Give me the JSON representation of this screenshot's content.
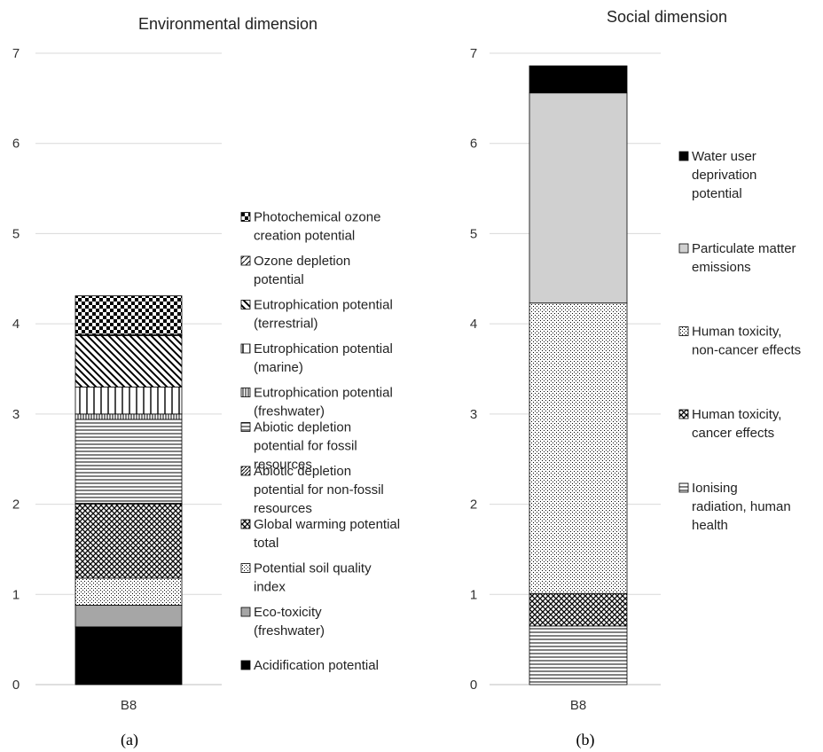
{
  "panel_labels": [
    "(a)",
    "(b)"
  ],
  "chart_data": [
    {
      "type": "bar",
      "stacked": true,
      "title": "Environmental dimension",
      "categories": [
        "B8"
      ],
      "ylim": [
        0,
        7
      ],
      "yticks": [
        0,
        1,
        2,
        3,
        4,
        5,
        6,
        7
      ],
      "grid": true,
      "legend_position": "right",
      "series": [
        {
          "name": "Acidification potential",
          "values": [
            0.64
          ],
          "color": "#000000",
          "pattern": "solid-black"
        },
        {
          "name": "Eco-toxicity (freshwater)",
          "values": [
            0.24
          ],
          "color": "#a6a6a6",
          "pattern": "solid-gray"
        },
        {
          "name": "Potential soil quality index",
          "values": [
            0.3
          ],
          "color": "#ffffff",
          "pattern": "dots"
        },
        {
          "name": "Global warming potential total",
          "values": [
            0.82
          ],
          "color": "#ffffff",
          "pattern": "crosshatch-dense"
        },
        {
          "name": "Abiotic depletion potential for non-fossil resources",
          "values": [
            0.01
          ],
          "color": "#ffffff",
          "pattern": "diag-fine"
        },
        {
          "name": "Abiotic depletion potential for fossil resources",
          "values": [
            0.93
          ],
          "color": "#ffffff",
          "pattern": "hlines"
        },
        {
          "name": "Eutrophication potential (freshwater)",
          "values": [
            0.06
          ],
          "color": "#ffffff",
          "pattern": "vlines-fine"
        },
        {
          "name": "Eutrophication potential (marine)",
          "values": [
            0.3
          ],
          "color": "#ffffff",
          "pattern": "vlines-wide"
        },
        {
          "name": "Eutrophication potential (terrestrial)",
          "values": [
            0.57
          ],
          "color": "#ffffff",
          "pattern": "diag-down"
        },
        {
          "name": "Ozone depletion potential",
          "values": [
            0.01
          ],
          "color": "#ffffff",
          "pattern": "diag-up"
        },
        {
          "name": "Photochemical ozone creation potential",
          "values": [
            0.43
          ],
          "color": "#ffffff",
          "pattern": "checker"
        }
      ]
    },
    {
      "type": "bar",
      "stacked": true,
      "title": "Social dimension",
      "categories": [
        "B8"
      ],
      "ylim": [
        0,
        7
      ],
      "yticks": [
        0,
        1,
        2,
        3,
        4,
        5,
        6,
        7
      ],
      "grid": true,
      "legend_position": "right",
      "series": [
        {
          "name": "Ionising radiation, human health",
          "values": [
            0.65
          ],
          "color": "#ffffff",
          "pattern": "hlines"
        },
        {
          "name": "Human toxicity, cancer effects",
          "values": [
            0.36
          ],
          "color": "#ffffff",
          "pattern": "crosshatch-dense"
        },
        {
          "name": "Human toxicity, non-cancer effects",
          "values": [
            3.22
          ],
          "color": "#ffffff",
          "pattern": "dots"
        },
        {
          "name": "Particulate matter emissions",
          "values": [
            2.33
          ],
          "color": "#d0d0d0",
          "pattern": "solid-lightgray"
        },
        {
          "name": "Water user deprivation potential",
          "values": [
            0.3
          ],
          "color": "#000000",
          "pattern": "solid-black"
        }
      ]
    }
  ]
}
